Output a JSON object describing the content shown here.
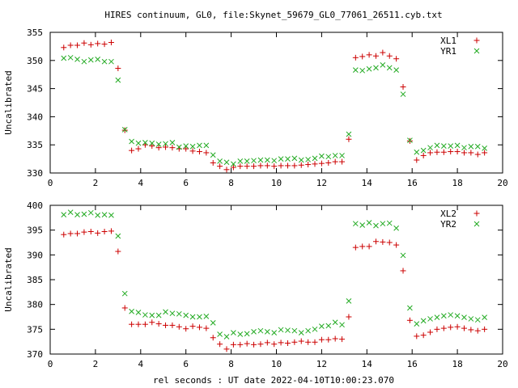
{
  "title": "HIRES continuum, GL0, file:Skynet_59679_GL0_77061_26511.cyb.txt",
  "xlabel": "rel seconds : UT date 2022-04-10T10:00:23.070",
  "colors": {
    "x_series": "#cc0000",
    "y_series": "#22aa22"
  },
  "chart_data": [
    {
      "type": "scatter",
      "ylabel": "Uncalibrated",
      "xlim": [
        0,
        20
      ],
      "ylim": [
        330,
        355
      ],
      "xticks": [
        0,
        2,
        4,
        6,
        8,
        10,
        12,
        14,
        16,
        18,
        20
      ],
      "yticks": [
        330,
        335,
        340,
        345,
        350,
        355
      ],
      "legend_position": "top-right",
      "x": [
        0.6,
        0.9,
        1.2,
        1.5,
        1.8,
        2.1,
        2.4,
        2.7,
        3.0,
        3.3,
        3.6,
        3.9,
        4.2,
        4.5,
        4.8,
        5.1,
        5.4,
        5.7,
        6.0,
        6.3,
        6.6,
        6.9,
        7.2,
        7.5,
        7.8,
        8.1,
        8.4,
        8.7,
        9.0,
        9.3,
        9.6,
        9.9,
        10.2,
        10.5,
        10.8,
        11.1,
        11.4,
        11.7,
        12.0,
        12.3,
        12.6,
        12.9,
        13.2,
        13.5,
        13.8,
        14.1,
        14.4,
        14.7,
        15.0,
        15.3,
        15.6,
        15.9,
        16.2,
        16.5,
        16.8,
        17.1,
        17.4,
        17.7,
        18.0,
        18.3,
        18.6,
        18.9,
        19.2
      ],
      "series": [
        {
          "name": "XL1",
          "marker": "+",
          "values": [
            352.3,
            352.7,
            352.7,
            353.1,
            352.8,
            353.0,
            352.9,
            353.2,
            348.6,
            337.6,
            334.0,
            334.3,
            335.0,
            334.8,
            334.5,
            334.6,
            334.5,
            334.3,
            334.3,
            333.9,
            333.8,
            333.6,
            331.8,
            331.2,
            330.6,
            331.0,
            331.2,
            331.2,
            331.2,
            331.3,
            331.3,
            331.2,
            331.3,
            331.3,
            331.3,
            331.4,
            331.5,
            331.6,
            331.7,
            331.8,
            332.0,
            332.0,
            336.0,
            350.5,
            350.7,
            351.0,
            350.8,
            351.4,
            350.8,
            350.3,
            345.3,
            335.7,
            332.3,
            333.1,
            333.6,
            333.7,
            333.7,
            333.8,
            333.8,
            333.6,
            333.6,
            333.3,
            333.6
          ]
        },
        {
          "name": "YR1",
          "marker": "x",
          "values": [
            350.4,
            350.5,
            350.2,
            349.8,
            350.1,
            350.2,
            349.8,
            349.8,
            346.5,
            337.7,
            335.6,
            335.3,
            335.4,
            335.3,
            335.1,
            335.2,
            335.4,
            334.6,
            334.8,
            334.7,
            334.9,
            334.9,
            333.2,
            332.1,
            331.9,
            331.6,
            332.1,
            332.1,
            332.2,
            332.3,
            332.3,
            332.2,
            332.5,
            332.5,
            332.6,
            332.3,
            332.4,
            332.6,
            333.0,
            332.9,
            333.1,
            333.1,
            336.9,
            348.3,
            348.2,
            348.5,
            348.7,
            349.2,
            348.7,
            348.3,
            344.0,
            335.8,
            333.7,
            334.0,
            334.5,
            334.9,
            334.8,
            334.8,
            334.9,
            334.5,
            334.7,
            334.7,
            334.4
          ]
        }
      ]
    },
    {
      "type": "scatter",
      "ylabel": "Uncalibrated",
      "xlim": [
        0,
        20
      ],
      "ylim": [
        370,
        400
      ],
      "xticks": [
        0,
        2,
        4,
        6,
        8,
        10,
        12,
        14,
        16,
        18,
        20
      ],
      "yticks": [
        370,
        375,
        380,
        385,
        390,
        395,
        400
      ],
      "legend_position": "top-right",
      "x": [
        0.6,
        0.9,
        1.2,
        1.5,
        1.8,
        2.1,
        2.4,
        2.7,
        3.0,
        3.3,
        3.6,
        3.9,
        4.2,
        4.5,
        4.8,
        5.1,
        5.4,
        5.7,
        6.0,
        6.3,
        6.6,
        6.9,
        7.2,
        7.5,
        7.8,
        8.1,
        8.4,
        8.7,
        9.0,
        9.3,
        9.6,
        9.9,
        10.2,
        10.5,
        10.8,
        11.1,
        11.4,
        11.7,
        12.0,
        12.3,
        12.6,
        12.9,
        13.2,
        13.5,
        13.8,
        14.1,
        14.4,
        14.7,
        15.0,
        15.3,
        15.6,
        15.9,
        16.2,
        16.5,
        16.8,
        17.1,
        17.4,
        17.7,
        18.0,
        18.3,
        18.6,
        18.9,
        19.2
      ],
      "series": [
        {
          "name": "XL2",
          "marker": "+",
          "values": [
            394.1,
            394.3,
            394.3,
            394.6,
            394.7,
            394.4,
            394.7,
            394.8,
            390.7,
            379.3,
            376.0,
            376.0,
            376.0,
            376.4,
            376.1,
            375.8,
            375.8,
            375.5,
            375.1,
            375.6,
            375.4,
            375.2,
            373.3,
            372.0,
            371.0,
            371.9,
            371.9,
            372.1,
            371.9,
            372.0,
            372.3,
            372.0,
            372.3,
            372.2,
            372.4,
            372.6,
            372.4,
            372.4,
            372.9,
            372.9,
            373.1,
            373.0,
            377.5,
            391.5,
            391.7,
            391.7,
            392.7,
            392.6,
            392.5,
            392.0,
            386.8,
            376.8,
            373.6,
            373.8,
            374.4,
            375.0,
            375.2,
            375.4,
            375.5,
            375.2,
            374.9,
            374.7,
            375.0
          ]
        },
        {
          "name": "YR2",
          "marker": "x",
          "values": [
            398.1,
            398.6,
            398.1,
            398.2,
            398.5,
            398.0,
            398.1,
            398.0,
            393.8,
            382.2,
            378.6,
            378.4,
            377.9,
            377.8,
            377.8,
            378.5,
            378.2,
            378.1,
            377.8,
            377.5,
            377.5,
            377.6,
            376.3,
            374.0,
            373.5,
            374.3,
            374.0,
            374.1,
            374.5,
            374.7,
            374.5,
            374.3,
            374.9,
            374.8,
            374.7,
            374.3,
            374.7,
            375.0,
            375.6,
            375.7,
            376.4,
            375.9,
            380.7,
            396.3,
            396.0,
            396.5,
            395.9,
            396.3,
            396.4,
            395.4,
            389.9,
            379.3,
            376.1,
            376.7,
            377.1,
            377.4,
            377.7,
            377.9,
            377.7,
            377.4,
            377.1,
            376.9,
            377.4
          ]
        }
      ]
    }
  ]
}
